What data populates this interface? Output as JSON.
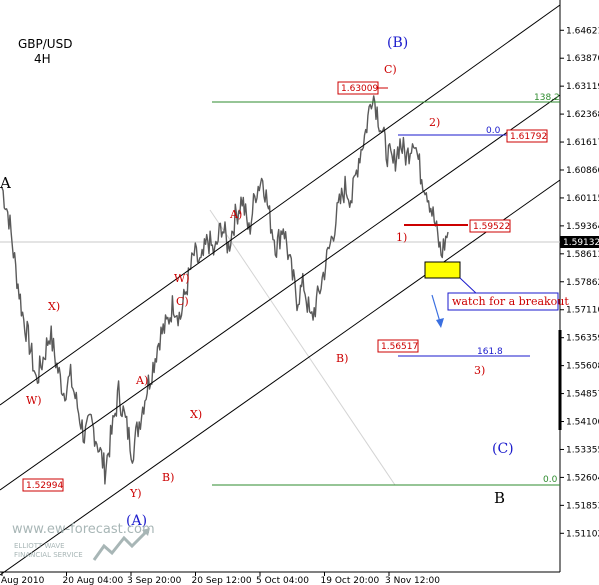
{
  "chart_data": {
    "type": "line",
    "title": "GBP/USD",
    "subtitle": "4H",
    "xlabel": "",
    "ylabel": "",
    "ylim": [
      1.5025,
      1.653
    ],
    "x_ticks": [
      "Aug 2010",
      "20 Aug 04:00",
      "3 Sep 20:00",
      "20 Sep 12:00",
      "5 Oct 04:00",
      "19 Oct 20:00",
      "3 Nov 12:00"
    ],
    "y_ticks": [
      "1.64621",
      "1.63870",
      "1.63119",
      "1.62368",
      "1.61617",
      "1.60866",
      "1.60115",
      "1.59364",
      "1.58613",
      "1.57862",
      "1.57110",
      "1.56359",
      "1.55608",
      "1.54857",
      "1.54106",
      "1.53355",
      "1.52604",
      "1.51853",
      "1.51102"
    ],
    "current_price": "1.59132",
    "series": [
      {
        "values": [
          1.604,
          1.596,
          1.582,
          1.57,
          1.562,
          1.552,
          1.558,
          1.565,
          1.556,
          1.549,
          1.553,
          1.545,
          1.537,
          1.541,
          1.535,
          1.528,
          1.538,
          1.549,
          1.541,
          1.533,
          1.541,
          1.549,
          1.556,
          1.564,
          1.567,
          1.573,
          1.569,
          1.578,
          1.586,
          1.583,
          1.59,
          1.586,
          1.594,
          1.588,
          1.596,
          1.601,
          1.592,
          1.603,
          1.607,
          1.596,
          1.588,
          1.594,
          1.583,
          1.574,
          1.578,
          1.568,
          1.574,
          1.582,
          1.59,
          1.598,
          1.604,
          1.601,
          1.612,
          1.619,
          1.63,
          1.622,
          1.614,
          1.61,
          1.616,
          1.612,
          1.618,
          1.608,
          1.603,
          1.595,
          1.586,
          1.592
        ]
      }
    ]
  },
  "annotations": {
    "wave_labels_red": [
      "X)",
      "W)",
      "A)",
      "X)",
      "B)",
      "Y)",
      "C)",
      "W)",
      "A)",
      "B)",
      "C)",
      "1)",
      "2)",
      "3)"
    ],
    "wave_labels_blue": [
      "(B)",
      "(A)",
      "(C)"
    ],
    "wave_labels_black": [
      "A",
      "B"
    ],
    "level_boxes": [
      "1.63009",
      "1.61792",
      "1.59522",
      "1.56517",
      "1.52994"
    ],
    "fib_labels": [
      "138.2",
      "0.0",
      "161.8",
      "0.0"
    ],
    "note": "watch for a breakout"
  },
  "watermark": {
    "site": "www.ew-forecast.com",
    "line1": "ELLIOTT WAVE",
    "line2": "FINANCIAL SERVICE"
  },
  "colors": {
    "price": "#5a5a5a",
    "channel": "#000000",
    "fib_green": "#2e8b2e",
    "fib_blue": "#1a1acc",
    "box_red": "#cc0000",
    "highlight": "#ffff00",
    "wave_red": "#cc0000",
    "wave_blue": "#1a1acc"
  }
}
